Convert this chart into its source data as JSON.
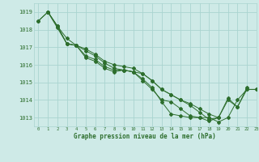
{
  "title": "Graphe pression niveau de la mer (hPa)",
  "background_color": "#ceeae7",
  "grid_color": "#aad4d0",
  "line_color": "#2d6e2d",
  "xlim": [
    -0.5,
    23
  ],
  "ylim": [
    1012.5,
    1019.5
  ],
  "yticks": [
    1013,
    1014,
    1015,
    1016,
    1017,
    1018,
    1019
  ],
  "xticks": [
    0,
    1,
    2,
    3,
    4,
    5,
    6,
    7,
    8,
    9,
    10,
    11,
    12,
    13,
    14,
    15,
    16,
    17,
    18,
    19,
    20,
    21,
    22,
    23
  ],
  "series": [
    {
      "x": [
        0,
        1,
        2,
        3,
        4,
        5,
        6,
        7,
        8,
        9,
        10,
        11,
        12,
        13,
        14,
        15,
        16,
        17,
        18,
        19,
        20,
        21,
        22
      ],
      "y": [
        1018.5,
        1019.0,
        1018.2,
        1017.2,
        1017.1,
        1016.5,
        1016.3,
        1015.9,
        1015.7,
        1015.7,
        1015.6,
        1015.2,
        1014.7,
        1013.9,
        1013.2,
        1013.1,
        1013.0,
        1013.0,
        1012.8,
        1013.0,
        1014.1,
        1013.6,
        1014.7
      ]
    },
    {
      "x": [
        0,
        1,
        2,
        3,
        4,
        5,
        6,
        7,
        8,
        9,
        10,
        11,
        12,
        13,
        14,
        15,
        16,
        17,
        18,
        19
      ],
      "y": [
        1018.5,
        1019.0,
        1018.2,
        1017.2,
        1017.1,
        1016.9,
        1016.6,
        1016.2,
        1016.0,
        1015.9,
        1015.8,
        1015.5,
        1015.1,
        1014.6,
        1014.3,
        1014.0,
        1013.8,
        1013.5,
        1013.2,
        1013.0
      ]
    },
    {
      "x": [
        1,
        2,
        3,
        4,
        5,
        6,
        7,
        8,
        9,
        10,
        11,
        12,
        13,
        14,
        15,
        16,
        17,
        18,
        19,
        20,
        21,
        22,
        23
      ],
      "y": [
        1019.0,
        1018.2,
        1017.5,
        1017.1,
        1016.8,
        1016.5,
        1016.1,
        1015.8,
        1015.7,
        1015.6,
        1015.5,
        1015.1,
        1014.6,
        1014.3,
        1014.0,
        1013.7,
        1013.3,
        1012.9,
        1013.0,
        1014.0,
        1013.6,
        1014.6,
        1014.6
      ]
    },
    {
      "x": [
        1,
        2,
        3,
        4,
        5,
        6,
        7,
        8,
        9,
        10,
        11,
        12,
        13,
        14,
        15,
        16,
        17,
        18,
        19,
        20,
        21,
        22,
        23
      ],
      "y": [
        1019.0,
        1018.1,
        1017.2,
        1017.1,
        1016.4,
        1016.2,
        1015.8,
        1015.6,
        1015.7,
        1015.6,
        1015.1,
        1014.6,
        1014.0,
        1013.9,
        1013.5,
        1013.1,
        1013.0,
        1013.0,
        1012.75,
        1013.0,
        1014.0,
        1014.6,
        1014.6
      ]
    }
  ]
}
